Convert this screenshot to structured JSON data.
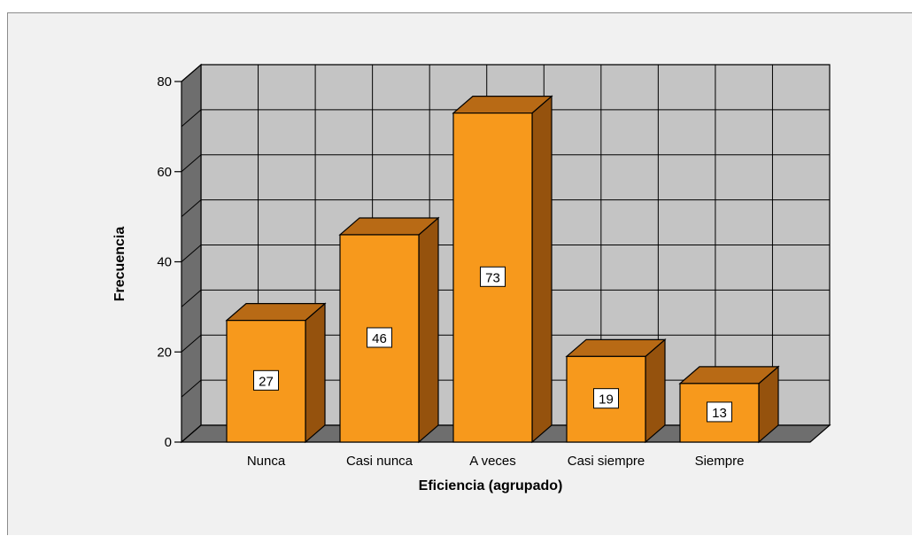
{
  "chart_data": {
    "type": "bar",
    "categories": [
      "Nunca",
      "Casi nunca",
      "A veces",
      "Casi siempre",
      "Siempre"
    ],
    "values": [
      27,
      46,
      73,
      19,
      13
    ],
    "data_labels": [
      "27",
      "46",
      "73",
      "19",
      "13"
    ],
    "xlabel": "Eficiencia (agrupado)",
    "ylabel": "Frecuencia",
    "ylim": [
      0,
      80
    ],
    "yticks": [
      0,
      20,
      40,
      60,
      80
    ],
    "yticks_labels": [
      "0",
      "20",
      "40",
      "60",
      "80"
    ],
    "grid": true,
    "style": "3d",
    "colors": {
      "bar_front": "#f7991c",
      "bar_side": "#95520d",
      "bar_top": "#b86a15",
      "wall_back": "#c4c4c4",
      "wall_side": "#6e6e6e",
      "floor": "#6e6e6e",
      "grid": "#000000"
    }
  }
}
